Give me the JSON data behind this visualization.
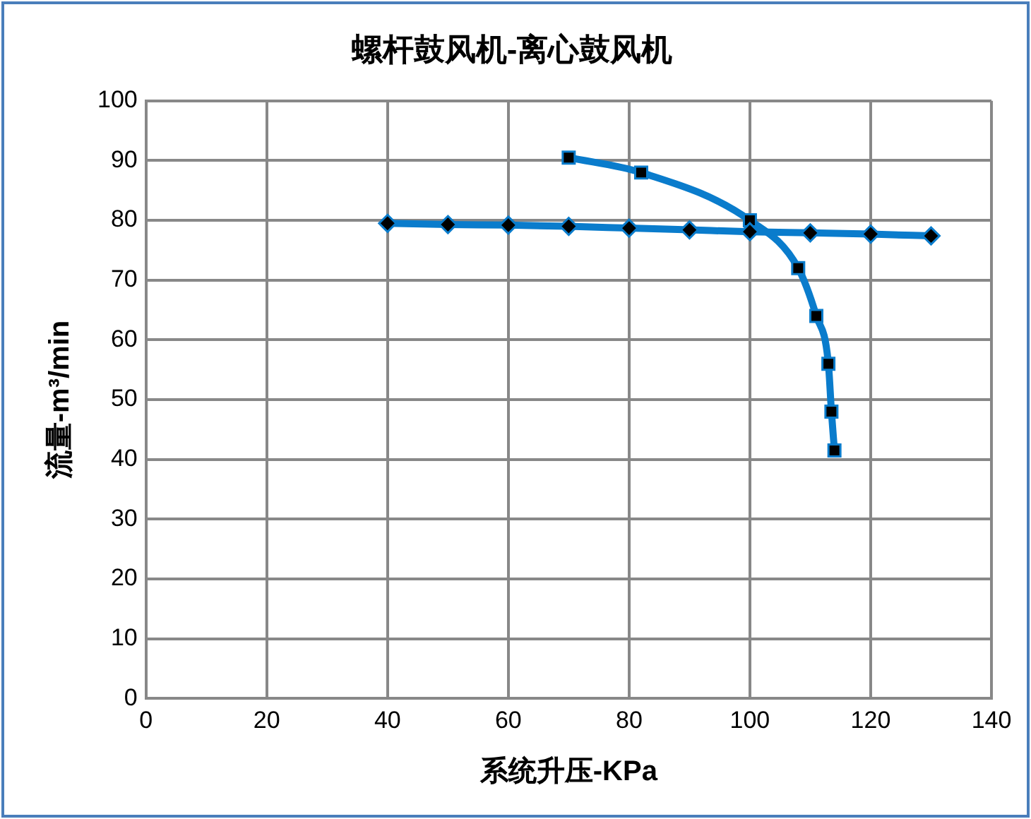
{
  "chart_data": {
    "type": "line",
    "title": "螺杆鼓风机-离心鼓风机",
    "xlabel": "系统升压-KPa",
    "ylabel": "流量-m³/min",
    "xlim": [
      0,
      140
    ],
    "xticks": [
      0,
      20,
      40,
      60,
      80,
      100,
      120,
      140
    ],
    "ylim": [
      0,
      100
    ],
    "yticks": [
      0,
      10,
      20,
      30,
      40,
      50,
      60,
      70,
      80,
      90,
      100
    ],
    "grid": true,
    "legend": false,
    "line_style": "solid",
    "series": [
      {
        "color": "#0a7ccc",
        "marker": "diamond",
        "x": [
          40,
          50,
          60,
          70,
          80,
          90,
          100,
          110,
          120,
          130
        ],
        "values": [
          79.5,
          79.3,
          79.2,
          79.0,
          78.7,
          78.4,
          78.1,
          77.9,
          77.7,
          77.4
        ]
      },
      {
        "color": "#0a7ccc",
        "marker": "square",
        "x": [
          70,
          82,
          100,
          108,
          111,
          113,
          113.5,
          114
        ],
        "values": [
          90.5,
          88,
          80,
          72,
          64,
          56,
          48,
          41.5
        ]
      }
    ]
  }
}
